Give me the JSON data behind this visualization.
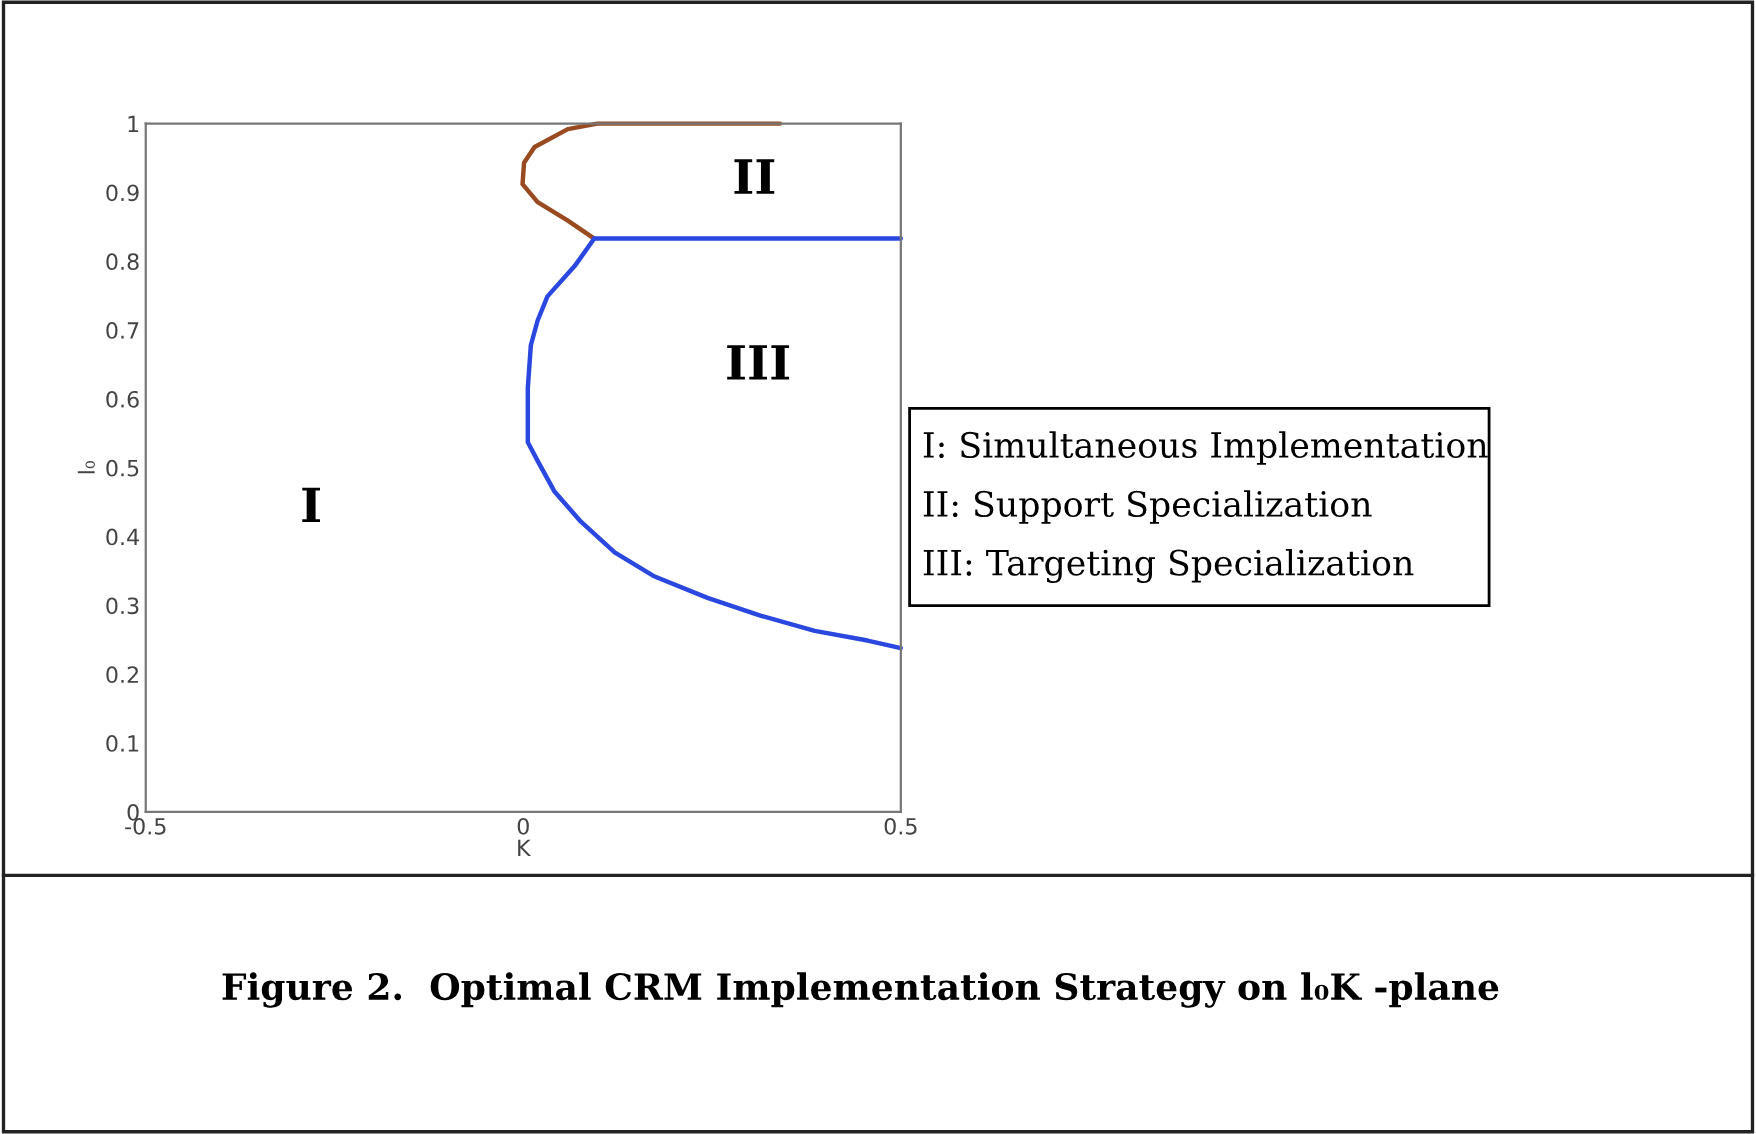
{
  "chart_data": {
    "type": "line",
    "xlabel": "K",
    "ylabel": "l₀",
    "xlim": [
      -0.5,
      0.5
    ],
    "xticks": [
      -0.5,
      0,
      0.5
    ],
    "ylim": [
      0,
      1
    ],
    "yticks": [
      0,
      0.1,
      0.2,
      0.3,
      0.4,
      0.5,
      0.6,
      0.7,
      0.8,
      0.9,
      1
    ],
    "grid": false,
    "legend": false,
    "line_style": "solid",
    "marker": "none",
    "series": [
      {
        "color": "#9a4a20",
        "x": [
          0.34,
          0.315,
          0.098,
          0.059,
          0.015,
          0.001,
          -0.001,
          0.019,
          0.059,
          0.094
        ],
        "values": [
          1,
          1,
          1,
          0.992,
          0.966,
          0.943,
          0.912,
          0.886,
          0.859,
          0.833
        ]
      },
      {
        "color": "#2a48e0",
        "x": [
          0.094,
          0.5
        ],
        "values": [
          0.833,
          0.833
        ]
      },
      {
        "color": "#2a48e0",
        "x": [
          0.094,
          0.068,
          0.032,
          0.019,
          0.01,
          0.006,
          0.006,
          0.019,
          0.041,
          0.076,
          0.121,
          0.174,
          0.244,
          0.315,
          0.386,
          0.456,
          0.5
        ],
        "values": [
          0.833,
          0.793,
          0.749,
          0.714,
          0.678,
          0.616,
          0.537,
          0.51,
          0.466,
          0.422,
          0.377,
          0.342,
          0.311,
          0.285,
          0.263,
          0.249,
          0.238
        ]
      }
    ],
    "annotations": [
      "I",
      "II",
      "III",
      "I: Simultaneous Implementation",
      "II: Support Specialization",
      "III: Targeting Specialization",
      "Figure 2.  Optimal CRM Implementation Strategy on l₀K -plane"
    ]
  }
}
